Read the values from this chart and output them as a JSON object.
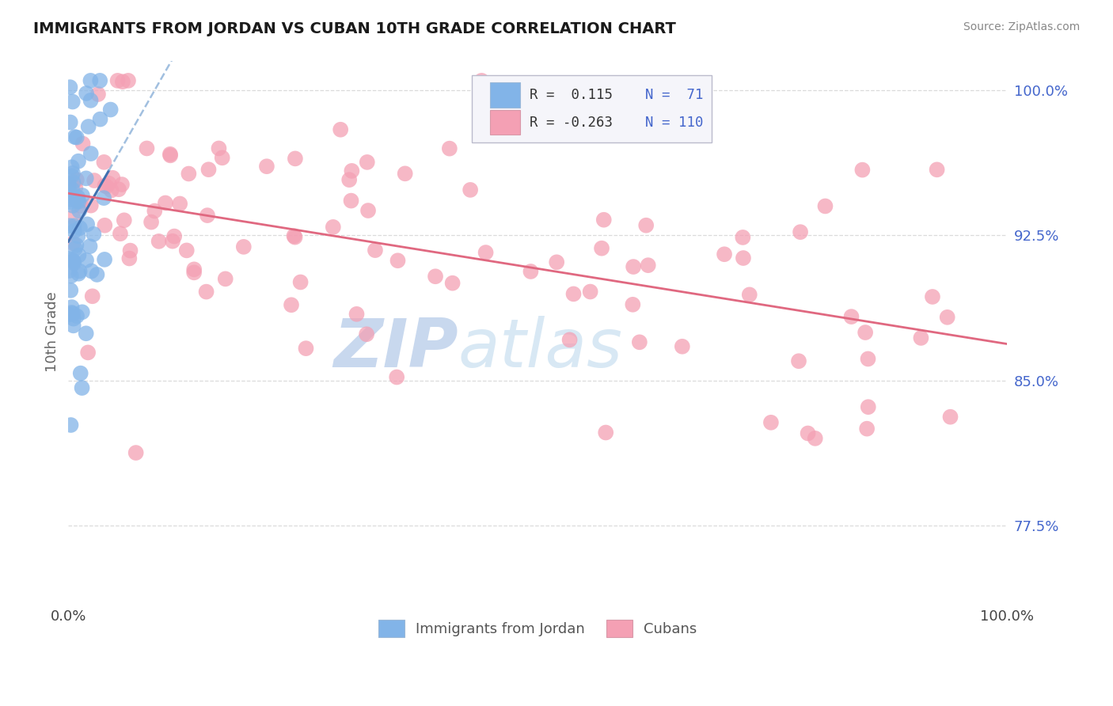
{
  "title": "IMMIGRANTS FROM JORDAN VS CUBAN 10TH GRADE CORRELATION CHART",
  "source_text": "Source: ZipAtlas.com",
  "ylabel": "10th Grade",
  "xlim": [
    0.0,
    1.0
  ],
  "ylim": [
    0.735,
    1.015
  ],
  "yticks": [
    0.775,
    0.85,
    0.925,
    1.0
  ],
  "ytick_labels": [
    "77.5%",
    "85.0%",
    "92.5%",
    "100.0%"
  ],
  "xtick_labels": [
    "0.0%",
    "100.0%"
  ],
  "xticks": [
    0.0,
    1.0
  ],
  "jordan_color": "#82b4e8",
  "cuban_color": "#f4a0b4",
  "jordan_R": 0.115,
  "jordan_N": 71,
  "cuban_R": -0.263,
  "cuban_N": 110,
  "jordan_trend_color": "#4070b0",
  "jordan_trend_dashed_color": "#8ab0d8",
  "cuban_trend_color": "#e06880",
  "watermark_zip": "ZIP",
  "watermark_atlas": "atlas",
  "watermark_color": "#d0e0f4",
  "grid_color": "#d8d8d8",
  "background_color": "#ffffff",
  "legend_box_color": "#e8e8f0",
  "legend_text_color_R": "#333333",
  "legend_text_color_N": "#4466cc",
  "legend_value_color": "#4466cc"
}
